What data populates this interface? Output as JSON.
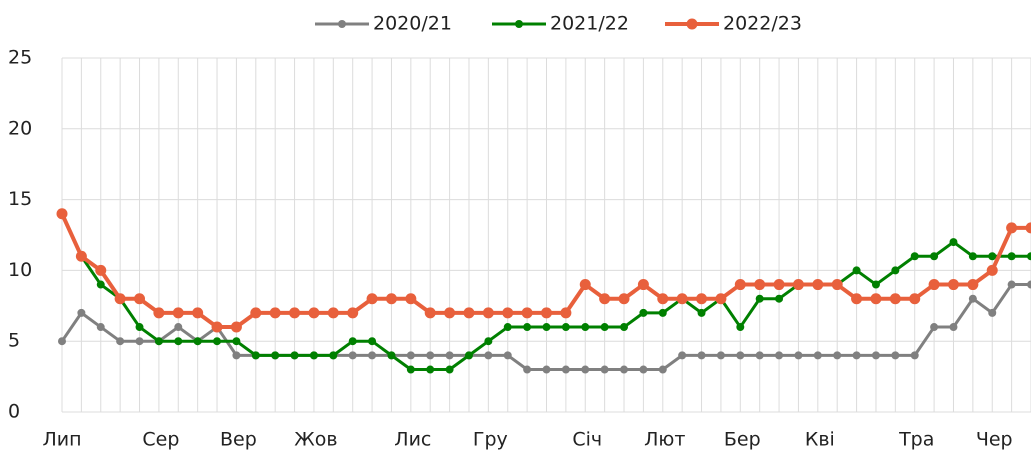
{
  "chart_data": {
    "type": "line",
    "categories": [
      "Лип",
      null,
      null,
      null,
      null,
      "Сер",
      null,
      null,
      null,
      "Вер",
      null,
      null,
      null,
      "Жов",
      null,
      null,
      null,
      null,
      "Лис",
      null,
      null,
      null,
      "Гру",
      null,
      null,
      null,
      null,
      "Січ",
      null,
      null,
      null,
      "Лют",
      null,
      null,
      null,
      "Бер",
      null,
      null,
      null,
      "Кві",
      null,
      null,
      null,
      null,
      "Тра",
      null,
      null,
      null,
      "Чер",
      null,
      null
    ],
    "series": [
      {
        "name": "2020/21",
        "color": "#808080",
        "values": [
          5,
          7,
          6,
          5,
          5,
          5,
          6,
          5,
          6,
          4,
          4,
          4,
          4,
          4,
          4,
          4,
          4,
          4,
          4,
          4,
          4,
          4,
          4,
          4,
          3,
          3,
          3,
          3,
          3,
          3,
          3,
          3,
          4,
          4,
          4,
          4,
          4,
          4,
          4,
          4,
          4,
          4,
          4,
          4,
          4,
          6,
          6,
          8,
          7,
          9,
          9
        ]
      },
      {
        "name": "2021/22",
        "color": "#008000",
        "values": [
          14,
          11,
          9,
          8,
          6,
          5,
          5,
          5,
          5,
          5,
          4,
          4,
          4,
          4,
          4,
          5,
          5,
          4,
          3,
          3,
          3,
          4,
          5,
          6,
          6,
          6,
          6,
          6,
          6,
          6,
          7,
          7,
          8,
          7,
          8,
          6,
          8,
          8,
          9,
          9,
          9,
          10,
          9,
          10,
          11,
          11,
          12,
          11,
          11,
          11,
          11
        ]
      },
      {
        "name": "2022/23",
        "color": "#e8603c",
        "values": [
          14,
          11,
          10,
          8,
          8,
          7,
          7,
          7,
          6,
          6,
          7,
          7,
          7,
          7,
          7,
          7,
          8,
          8,
          8,
          7,
          7,
          7,
          7,
          7,
          7,
          7,
          7,
          9,
          8,
          8,
          9,
          8,
          8,
          8,
          8,
          9,
          9,
          9,
          9,
          9,
          9,
          8,
          8,
          8,
          8,
          9,
          9,
          9,
          10,
          13,
          13
        ]
      }
    ],
    "ylim": [
      0,
      25
    ],
    "yticks": [
      0,
      5,
      10,
      15,
      20,
      25
    ],
    "grid": true,
    "legend": "top"
  }
}
